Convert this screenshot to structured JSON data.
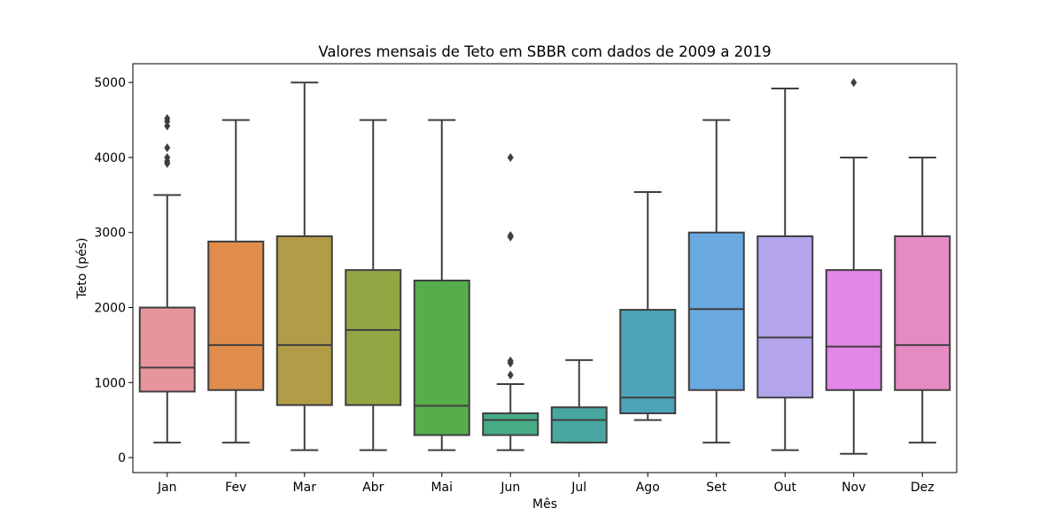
{
  "chart_data": {
    "type": "box",
    "title": "Valores mensais de Teto em SBBR com dados de 2009 a 2019",
    "xlabel": "Mês",
    "ylabel": "Teto (pés)",
    "ylim": [
      -200,
      5250
    ],
    "yticks": [
      0,
      1000,
      2000,
      3000,
      4000,
      5000
    ],
    "grid": false,
    "legend": "none",
    "categories": [
      "Jan",
      "Fev",
      "Mar",
      "Abr",
      "Mai",
      "Jun",
      "Jul",
      "Ago",
      "Set",
      "Out",
      "Nov",
      "Dez"
    ],
    "boxes": [
      {
        "category": "Jan",
        "color": "#e8949c",
        "whisker_low": 200,
        "q1": 880,
        "median": 1200,
        "q3": 2000,
        "whisker_high": 3500,
        "outliers": [
          3920,
          3950,
          4000,
          4130,
          4420,
          4480,
          4520
        ]
      },
      {
        "category": "Fev",
        "color": "#e08c4a",
        "whisker_low": 200,
        "q1": 900,
        "median": 1500,
        "q3": 2880,
        "whisker_high": 4500,
        "outliers": []
      },
      {
        "category": "Mar",
        "color": "#b29c48",
        "whisker_low": 100,
        "q1": 700,
        "median": 1500,
        "q3": 2950,
        "whisker_high": 5000,
        "outliers": []
      },
      {
        "category": "Abr",
        "color": "#93a644",
        "whisker_low": 100,
        "q1": 700,
        "median": 1700,
        "q3": 2500,
        "whisker_high": 4500,
        "outliers": []
      },
      {
        "category": "Mai",
        "color": "#57ac4c",
        "whisker_low": 100,
        "q1": 300,
        "median": 690,
        "q3": 2360,
        "whisker_high": 4500,
        "outliers": []
      },
      {
        "category": "Jun",
        "color": "#47ab85",
        "whisker_low": 100,
        "q1": 300,
        "median": 500,
        "q3": 590,
        "whisker_high": 980,
        "outliers": [
          1100,
          1260,
          1290,
          2940,
          2960,
          4000
        ]
      },
      {
        "category": "Jul",
        "color": "#48a7a0",
        "whisker_low": 200,
        "q1": 200,
        "median": 500,
        "q3": 670,
        "whisker_high": 1300,
        "outliers": []
      },
      {
        "category": "Ago",
        "color": "#4ba4ba",
        "whisker_low": 500,
        "q1": 590,
        "median": 800,
        "q3": 1970,
        "whisker_high": 3540,
        "outliers": []
      },
      {
        "category": "Set",
        "color": "#6aa9e0",
        "whisker_low": 200,
        "q1": 900,
        "median": 1980,
        "q3": 3000,
        "whisker_high": 4500,
        "outliers": []
      },
      {
        "category": "Out",
        "color": "#b3a4eb",
        "whisker_low": 100,
        "q1": 800,
        "median": 1600,
        "q3": 2950,
        "whisker_high": 4920,
        "outliers": []
      },
      {
        "category": "Nov",
        "color": "#e187e8",
        "whisker_low": 50,
        "q1": 900,
        "median": 1480,
        "q3": 2500,
        "whisker_high": 4000,
        "outliers": [
          5000
        ]
      },
      {
        "category": "Dez",
        "color": "#e68ac3",
        "whisker_low": 200,
        "q1": 900,
        "median": 1500,
        "q3": 2950,
        "whisker_high": 4000,
        "outliers": []
      }
    ]
  }
}
